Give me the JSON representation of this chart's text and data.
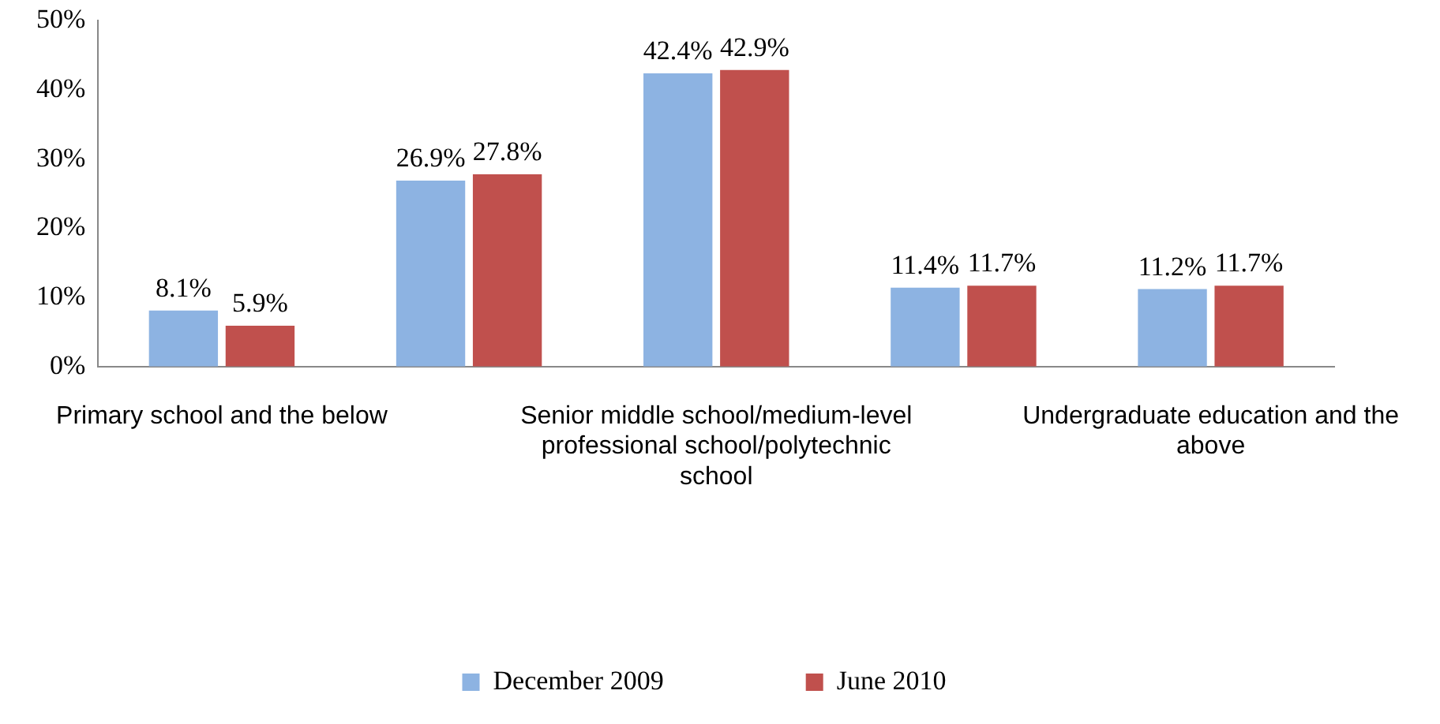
{
  "chart_data": {
    "type": "bar",
    "categories": [
      "Primary school and the below",
      null,
      "Senior middle school/medium-level professional school/polytechnic school",
      null,
      "Undergraduate education and the above"
    ],
    "series": [
      {
        "name": "December 2009",
        "color": "#8db3e2",
        "values": [
          8.1,
          26.9,
          42.4,
          11.4,
          11.2
        ],
        "value_labels": [
          "8.1%",
          "26.9%",
          "42.4%",
          "11.4%",
          "11.2%"
        ]
      },
      {
        "name": "June 2010",
        "color": "#c0504d",
        "values": [
          5.9,
          27.8,
          42.9,
          11.7,
          11.7
        ],
        "value_labels": [
          "5.9%",
          "27.8%",
          "42.9%",
          "11.7%",
          "11.7%"
        ]
      }
    ],
    "ylim": [
      0,
      50
    ],
    "yticks": [
      {
        "value": 0,
        "label": "0%"
      },
      {
        "value": 10,
        "label": "10%"
      },
      {
        "value": 20,
        "label": "20%"
      },
      {
        "value": 30,
        "label": "30%"
      },
      {
        "value": 40,
        "label": "40%"
      },
      {
        "value": 50,
        "label": "50%"
      }
    ],
    "grid": false,
    "legend": "bottom"
  }
}
